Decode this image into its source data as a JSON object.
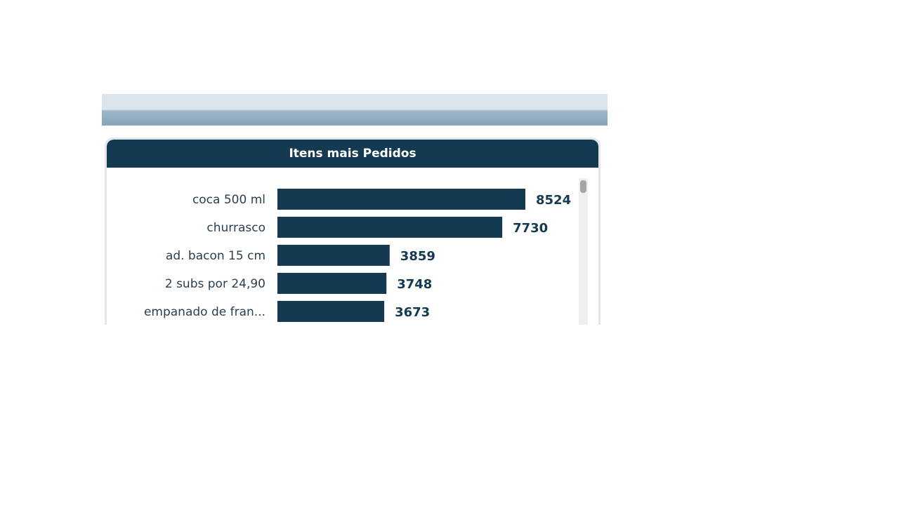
{
  "card": {
    "title": "Itens mais Pedidos"
  },
  "chart_data": {
    "type": "bar",
    "orientation": "horizontal",
    "title": "Itens mais Pedidos",
    "categories": [
      "coca 500 ml",
      "churrasco",
      "ad. bacon 15 cm",
      "2 subs por 24,90",
      "empanado de fran..."
    ],
    "values": [
      8524,
      7730,
      3859,
      3748,
      3673
    ],
    "data_labels": [
      "8524",
      "7730",
      "3859",
      "3748",
      "3673"
    ],
    "bar_color": "#143a52",
    "grid": false
  }
}
